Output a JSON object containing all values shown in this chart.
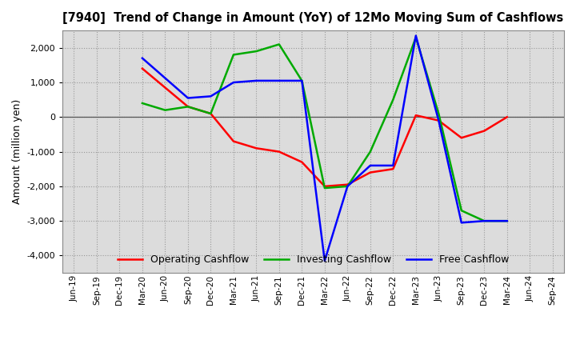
{
  "title": "[7940]  Trend of Change in Amount (YoY) of 12Mo Moving Sum of Cashflows",
  "ylabel": "Amount (million yen)",
  "background_color": "#ffffff",
  "plot_bg_color": "#dcdcdc",
  "grid_color": "#aaaaaa",
  "x_labels": [
    "Jun-19",
    "Sep-19",
    "Dec-19",
    "Mar-20",
    "Jun-20",
    "Sep-20",
    "Dec-20",
    "Mar-21",
    "Jun-21",
    "Sep-21",
    "Dec-21",
    "Mar-22",
    "Jun-22",
    "Sep-22",
    "Dec-22",
    "Mar-23",
    "Jun-23",
    "Sep-23",
    "Dec-23",
    "Mar-24",
    "Jun-24",
    "Sep-24"
  ],
  "operating": [
    null,
    null,
    null,
    1400,
    null,
    300,
    100,
    -700,
    -900,
    -1000,
    -1300,
    -2000,
    -1950,
    -1600,
    -1500,
    50,
    -100,
    -600,
    -400,
    0,
    null,
    null
  ],
  "investing": [
    null,
    null,
    null,
    400,
    200,
    300,
    100,
    1800,
    1900,
    2100,
    1050,
    -2050,
    -2000,
    -1000,
    500,
    2300,
    100,
    -2700,
    -3000,
    -3000,
    null,
    null
  ],
  "free": [
    null,
    null,
    null,
    1700,
    null,
    550,
    600,
    1000,
    1050,
    1050,
    1050,
    -4150,
    -2000,
    -1400,
    -1400,
    2350,
    -100,
    -3050,
    -3000,
    -3000,
    null,
    null
  ],
  "operating_color": "#ff0000",
  "investing_color": "#00aa00",
  "free_color": "#0000ff",
  "ylim": [
    -4500,
    2500
  ],
  "yticks": [
    -4000,
    -3000,
    -2000,
    -1000,
    0,
    1000,
    2000
  ]
}
